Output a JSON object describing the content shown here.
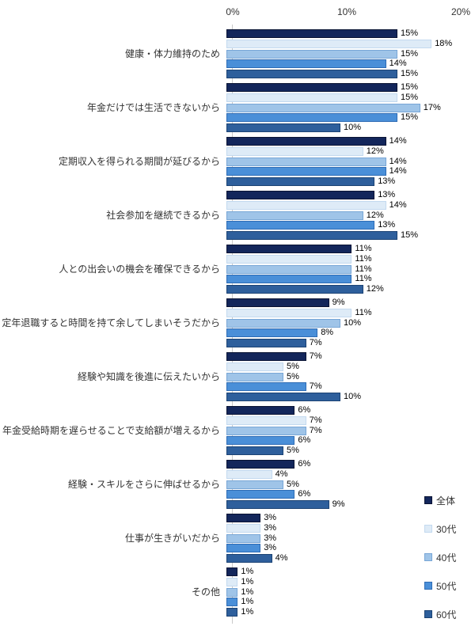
{
  "chart_data": {
    "type": "bar",
    "orientation": "horizontal",
    "title": "",
    "xlabel": "",
    "ylabel": "",
    "x_axis": {
      "ticks": [
        "0%",
        "10%",
        "20%"
      ],
      "min": 0,
      "max": 20
    },
    "grid": false,
    "value_suffix": "%",
    "legend": {
      "position": "right-bottom"
    },
    "categories": [
      "健康・体力維持のため",
      "年金だけでは生活できないから",
      "定期収入を得られる期間が延びるから",
      "社会参加を継続できるから",
      "人との出会いの機会を確保できるから",
      "定年退職すると時間を持て余してしまいそうだから",
      "経験や知識を後進に伝えたいから",
      "年金受給時期を遅らせることで支給額が増えるから",
      "経験・スキルをさらに伸ばせるから",
      "仕事が生きがいだから",
      "その他"
    ],
    "series": [
      {
        "name": "全体",
        "fill": "#13265B",
        "border": "#0A1434",
        "values": [
          15,
          15,
          14,
          13,
          11,
          9,
          7,
          6,
          6,
          3,
          1
        ]
      },
      {
        "name": "30代",
        "fill": "#DEEBF7",
        "border": "#C3D9EF",
        "values": [
          18,
          15,
          12,
          14,
          11,
          11,
          5,
          7,
          4,
          3,
          1
        ]
      },
      {
        "name": "40代",
        "fill": "#9FC4E8",
        "border": "#78A6D6",
        "values": [
          15,
          17,
          14,
          12,
          11,
          10,
          5,
          7,
          5,
          3,
          1
        ]
      },
      {
        "name": "50代",
        "fill": "#4A8FD8",
        "border": "#2E6CB5",
        "values": [
          14,
          15,
          14,
          13,
          11,
          8,
          7,
          6,
          6,
          3,
          1
        ]
      },
      {
        "name": "60代",
        "fill": "#2E5F9C",
        "border": "#1C4374",
        "values": [
          15,
          10,
          13,
          15,
          12,
          7,
          10,
          5,
          9,
          4,
          1
        ]
      }
    ]
  },
  "colors": {
    "axis_line": "#C9C9C9",
    "text": "#333333",
    "background": "#FFFFFF"
  }
}
